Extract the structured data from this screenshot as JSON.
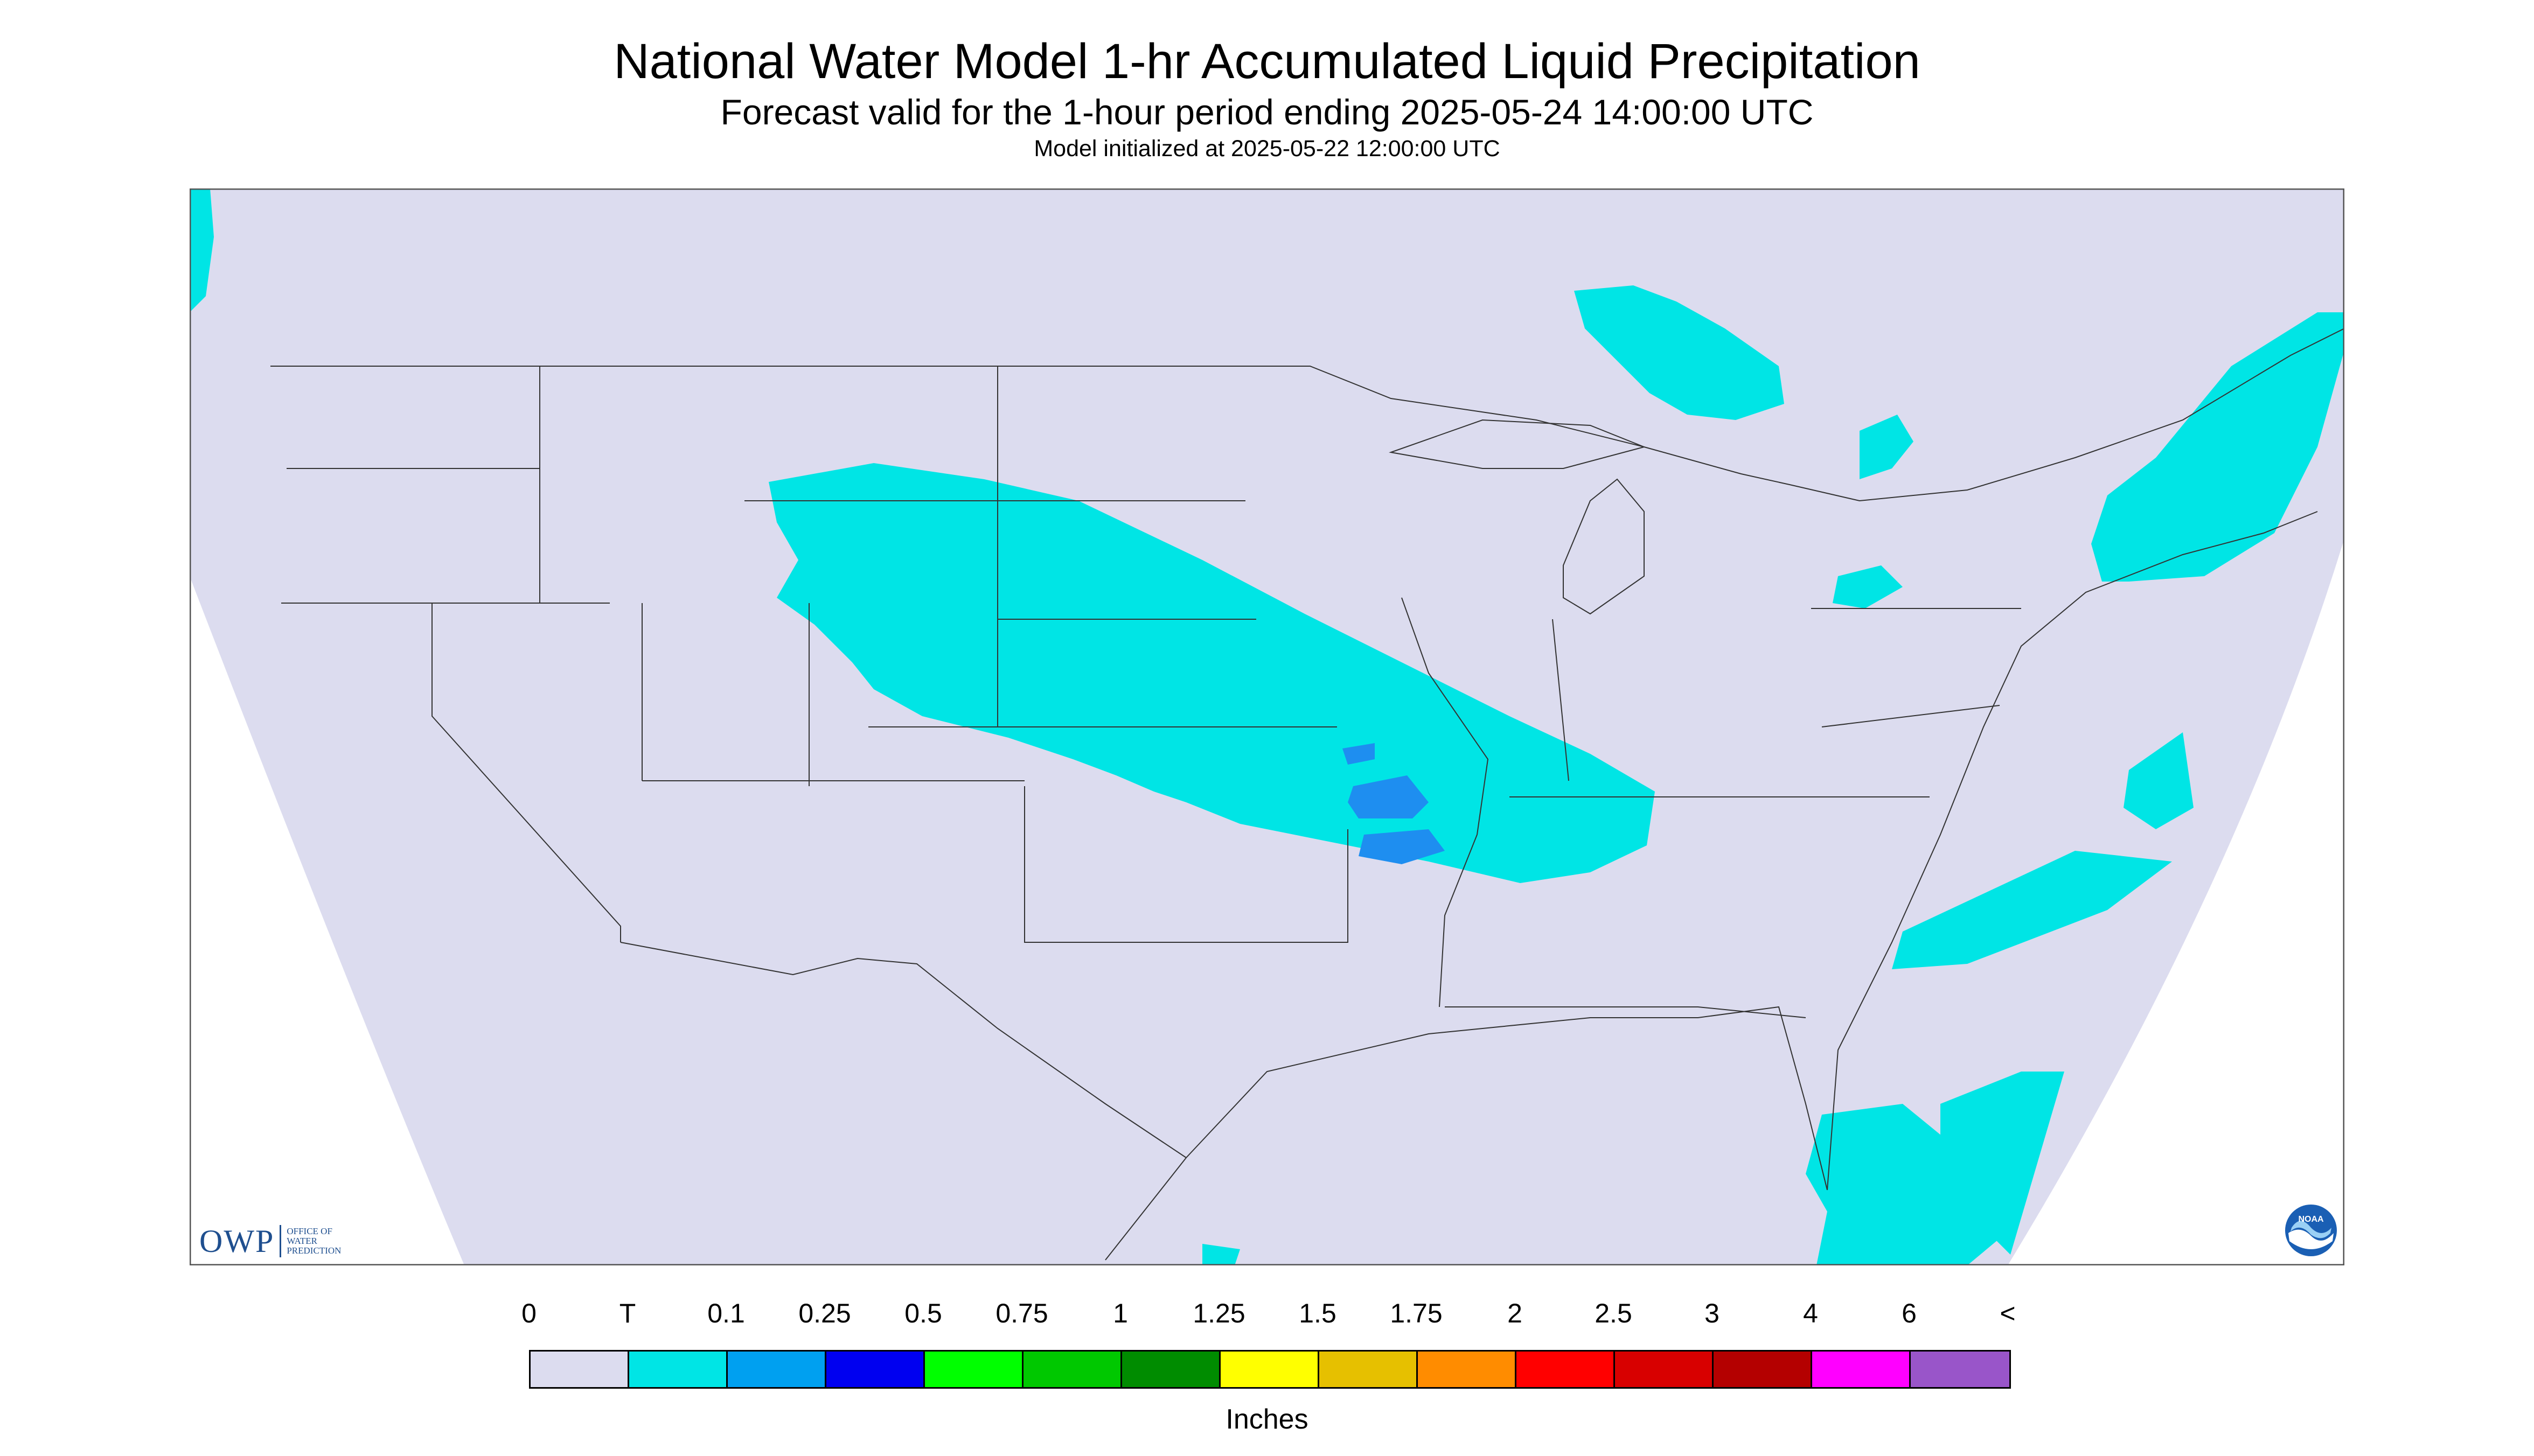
{
  "title": "National Water Model 1-hr Accumulated Liquid Precipitation",
  "subtitle": "Forecast valid for the 1-hour period ending 2025-05-24 14:00:00 UTC",
  "init_note": "Model initialized at 2025-05-22 12:00:00 UTC",
  "legend": {
    "labels": [
      "0",
      "T",
      "0.1",
      "0.25",
      "0.5",
      "0.75",
      "1",
      "1.25",
      "1.5",
      "1.75",
      "2",
      "2.5",
      "3",
      "4",
      "6",
      "<"
    ],
    "colors": [
      "#dcdcef",
      "#00e5e5",
      "#00a0f0",
      "#0000f0",
      "#00ff00",
      "#00c800",
      "#008c00",
      "#ffff00",
      "#e6c000",
      "#ff8c00",
      "#ff0000",
      "#d80000",
      "#b40000",
      "#ff00ff",
      "#9955c9"
    ],
    "units": "Inches"
  },
  "map": {
    "background_color": "#dcdcef",
    "light_precip_color": "#00e5e5",
    "moderate_precip_color": "#1e8ef0"
  },
  "logos": {
    "owp_text": "OWP",
    "owp_sub": [
      "OFFICE OF",
      "WATER",
      "PREDICTION"
    ],
    "noaa_text": "NOAA"
  }
}
